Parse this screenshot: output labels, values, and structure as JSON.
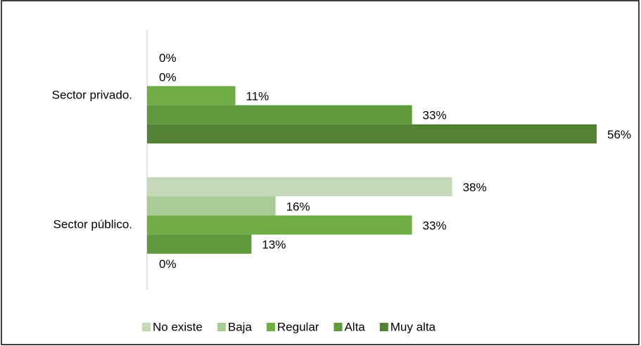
{
  "chart_data": {
    "type": "hbar",
    "categories": [
      "Sector privado.",
      "Sector público."
    ],
    "series": [
      {
        "name": "No existe",
        "color": "#c5d9b9",
        "values": [
          0,
          38
        ],
        "value_labels": [
          "0%",
          "38%"
        ]
      },
      {
        "name": "Baja",
        "color": "#a9cc94",
        "values": [
          0,
          16
        ],
        "value_labels": [
          "0%",
          "16%"
        ]
      },
      {
        "name": "Regular",
        "color": "#70ad47",
        "values": [
          11,
          33
        ],
        "value_labels": [
          "11%",
          "33%"
        ]
      },
      {
        "name": "Alta",
        "color": "#5f9b3e",
        "values": [
          33,
          13
        ],
        "value_labels": [
          "33%",
          "13%"
        ]
      },
      {
        "name": "Muy alta",
        "color": "#548235",
        "values": [
          56,
          0
        ],
        "value_labels": [
          "56%",
          "0%"
        ]
      }
    ],
    "legend": "bottom"
  }
}
